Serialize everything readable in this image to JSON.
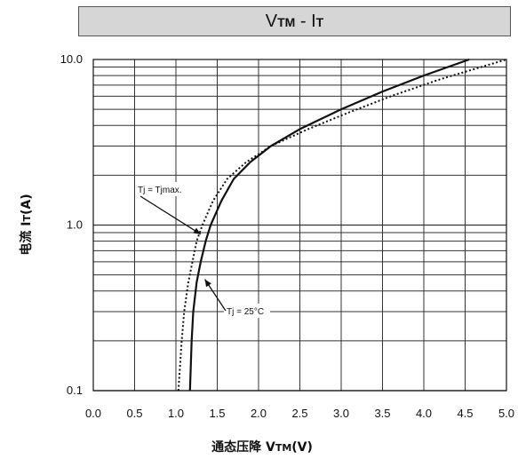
{
  "chart_data": {
    "type": "line",
    "title": {
      "main": "V",
      "main_sub": "TM",
      "sep": " - ",
      "second": "I",
      "second_sub": "T"
    },
    "xlabel": {
      "prefix": "通态压降 ",
      "var": "V",
      "sub": "TM",
      "suffix": "(V)"
    },
    "ylabel": {
      "prefix": "电流 ",
      "var": "I",
      "sub": "T",
      "suffix": "(A)"
    },
    "x_scale": "linear",
    "y_scale": "log",
    "xlim": [
      0.0,
      5.0
    ],
    "ylim": [
      0.1,
      10.0
    ],
    "x_ticks": [
      "0.0",
      "0.5",
      "1.0",
      "1.5",
      "2.0",
      "2.5",
      "3.0",
      "3.5",
      "4.0",
      "4.5",
      "5.0"
    ],
    "y_ticks": [
      {
        "label": "10.0",
        "value": 10.0
      },
      {
        "label": "1.0",
        "value": 1.0
      },
      {
        "label": "0.1",
        "value": 0.1
      }
    ],
    "grid": true,
    "series": [
      {
        "style": "solid",
        "color": "#111111",
        "points": [
          [
            1.17,
            0.1
          ],
          [
            1.19,
            0.2
          ],
          [
            1.21,
            0.3
          ],
          [
            1.25,
            0.45
          ],
          [
            1.3,
            0.6
          ],
          [
            1.36,
            0.8
          ],
          [
            1.42,
            1.0
          ],
          [
            1.55,
            1.4
          ],
          [
            1.7,
            1.9
          ],
          [
            1.9,
            2.4
          ],
          [
            2.15,
            3.0
          ],
          [
            2.5,
            3.8
          ],
          [
            3.0,
            5.0
          ],
          [
            3.5,
            6.4
          ],
          [
            4.0,
            8.0
          ],
          [
            4.55,
            10.0
          ]
        ]
      },
      {
        "style": "dotted",
        "color": "#111111",
        "points": [
          [
            1.03,
            0.1
          ],
          [
            1.07,
            0.2
          ],
          [
            1.1,
            0.3
          ],
          [
            1.15,
            0.45
          ],
          [
            1.2,
            0.6
          ],
          [
            1.25,
            0.8
          ],
          [
            1.32,
            1.0
          ],
          [
            1.45,
            1.4
          ],
          [
            1.62,
            1.9
          ],
          [
            1.85,
            2.4
          ],
          [
            2.15,
            3.0
          ],
          [
            2.6,
            3.8
          ],
          [
            3.1,
            4.8
          ],
          [
            3.6,
            6.0
          ],
          [
            4.2,
            7.6
          ],
          [
            5.0,
            10.0
          ]
        ]
      }
    ],
    "annotations": [
      {
        "text": "Tj = Tjmax.",
        "series": 1,
        "arrow_to": [
          1.3,
          0.88
        ]
      },
      {
        "text": "Tj = 25°C",
        "series": 0,
        "arrow_to": [
          1.35,
          0.47
        ]
      }
    ]
  }
}
